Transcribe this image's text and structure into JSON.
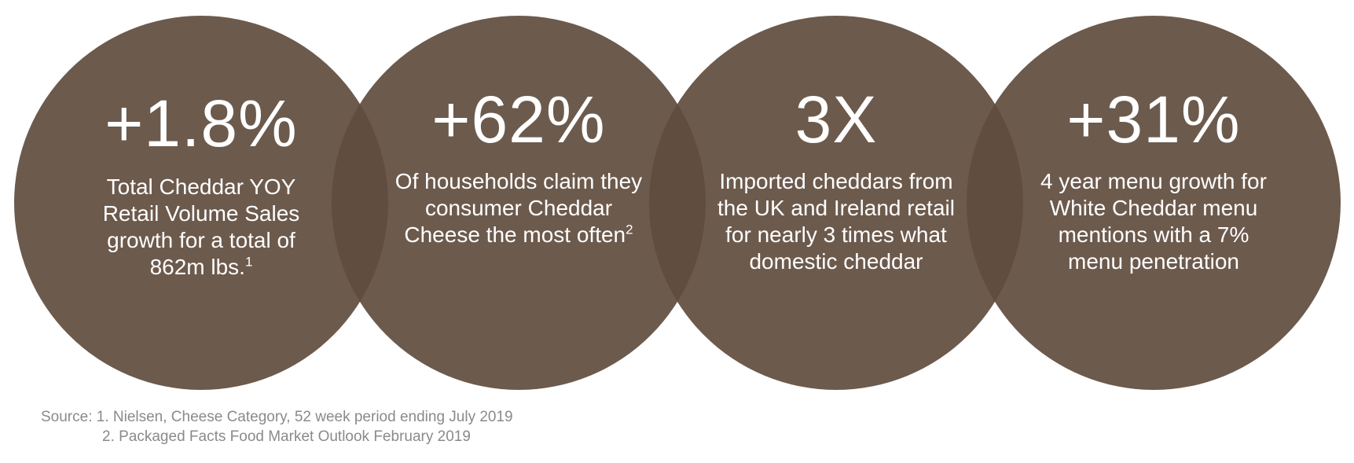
{
  "stats": [
    {
      "value": "+1.8%",
      "description": "Total Cheddar YOY Retail Volume Sales growth for a total of 862m lbs.",
      "footnote": "1"
    },
    {
      "value": "+62%",
      "description": "Of households claim they consumer Cheddar Cheese the most often",
      "footnote": "2"
    },
    {
      "value": "3X",
      "description": "Imported cheddars from the UK and Ireland retail for nearly 3 times what domestic cheddar",
      "footnote": ""
    },
    {
      "value": "+31%",
      "description": "4 year menu growth for White Cheddar menu mentions with a 7% menu penetration",
      "footnote": ""
    }
  ],
  "source": {
    "line1": "Source: 1. Nielsen, Cheese Category, 52 week period ending July 2019",
    "line2": "2. Packaged Facts Food Market Outlook February 2019"
  },
  "colors": {
    "circle_fill": "#5F4C3E",
    "text": "#FFFFFF",
    "source_text": "#8A8A8A"
  }
}
